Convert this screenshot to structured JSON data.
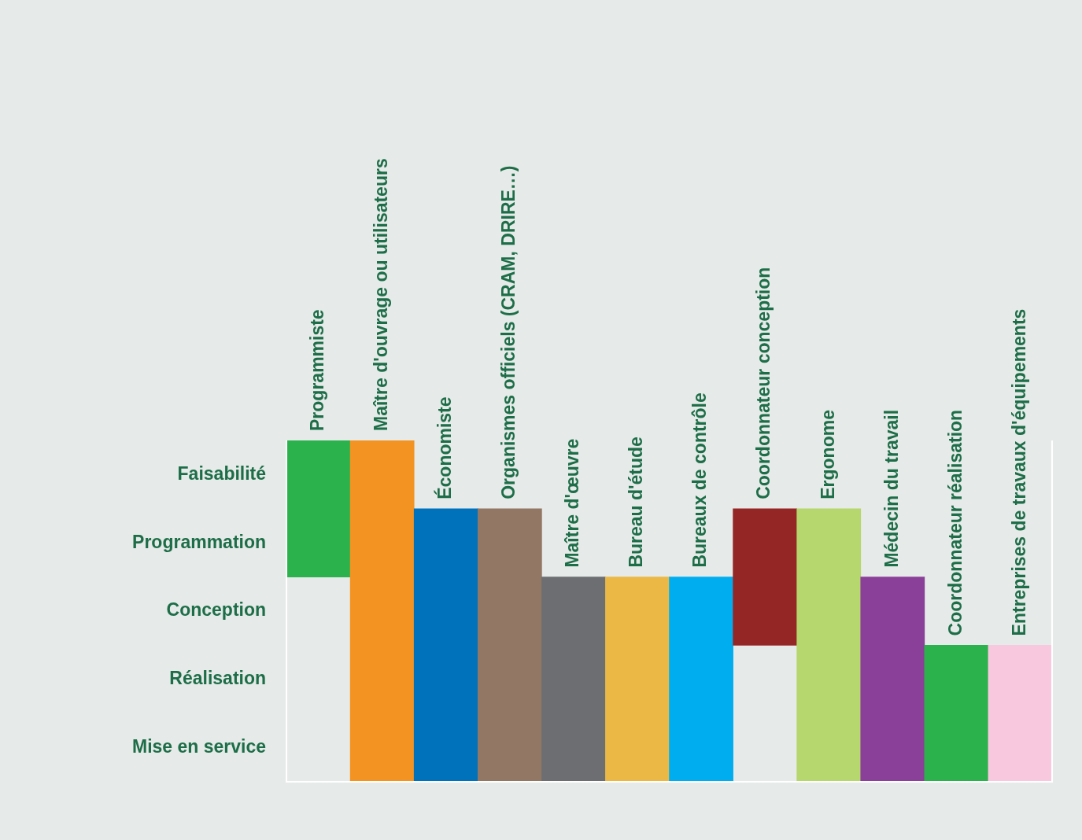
{
  "chart_data": {
    "type": "bar",
    "categories": [
      "Programmiste",
      "Maître d'ouvrage ou utilisateurs",
      "Économiste",
      "Organismes officiels (CRAM, DRIRE…)",
      "Maître d'œuvre",
      "Bureau d'étude",
      "Bureaux de contrôle",
      "Coordonnateur conception",
      "Ergonome",
      "Médecin du travail",
      "Coordonnateur réalisation",
      "Entreprises de travaux d'équipements"
    ],
    "y_categories": [
      "Faisabilité",
      "Programmation",
      "Conception",
      "Réalisation",
      "Mise en service"
    ],
    "values": [
      [
        "Faisabilité",
        "Programmation"
      ],
      [
        "Faisabilité",
        "Mise en service"
      ],
      [
        "Programmation",
        "Mise en service"
      ],
      [
        "Programmation",
        "Mise en service"
      ],
      [
        "Conception",
        "Mise en service"
      ],
      [
        "Conception",
        "Mise en service"
      ],
      [
        "Conception",
        "Mise en service"
      ],
      [
        "Programmation",
        "Conception"
      ],
      [
        "Programmation",
        "Mise en service"
      ],
      [
        "Conception",
        "Mise en service"
      ],
      [
        "Réalisation",
        "Mise en service"
      ],
      [
        "Réalisation",
        "Mise en service"
      ]
    ],
    "colors": [
      "#2bb24c",
      "#f39322",
      "#0071bb",
      "#927764",
      "#6d6e71",
      "#ecb845",
      "#00adef",
      "#952626",
      "#b6d66e",
      "#8a3f99",
      "#2bb24c",
      "#f7c8de"
    ],
    "grid": false,
    "tick_labels": "y"
  }
}
